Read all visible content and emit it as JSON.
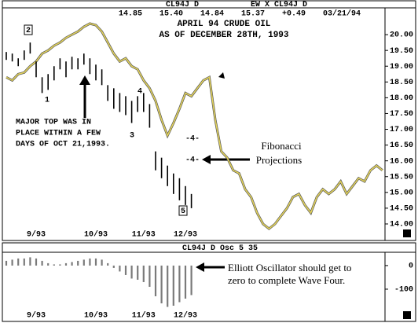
{
  "chart_data": [
    {
      "type": "ohlc",
      "header": [
        "CL94J D",
        "EW X CL94J D"
      ],
      "quote": "14.85 15.40 14.84 15.37 +0.49 03/21/94",
      "title": "APRIL 94 CRUDE OIL",
      "subtitle": "AS OF DECEMBER 28TH, 1993",
      "categories": [
        null,
        null,
        null,
        null,
        null,
        "9/93",
        null,
        null,
        null,
        null,
        null,
        null,
        null,
        null,
        null,
        "10/93",
        null,
        null,
        null,
        null,
        null,
        null,
        null,
        "11/93",
        null,
        null,
        null,
        null,
        null,
        null,
        "12/93",
        null,
        null,
        null,
        null,
        null,
        null,
        null,
        null,
        null,
        null,
        null,
        null,
        null,
        null,
        null,
        null,
        null,
        null,
        null,
        null,
        null,
        null,
        null,
        null,
        null,
        null,
        null,
        null,
        null,
        null,
        null,
        null,
        null
      ],
      "high": [
        19.45,
        19.4,
        19.25,
        19.5,
        19.75,
        19.15,
        18.65,
        18.75,
        19.0,
        19.25,
        19.15,
        19.3,
        19.25,
        19.4,
        19.25,
        19.05,
        18.9,
        18.4,
        18.3,
        18.15,
        18.05,
        17.9,
        18.05,
        18.15,
        17.8,
        16.3,
        16.1,
        15.85,
        15.6,
        15.45,
        15.2,
        14.95,
        null,
        null,
        null,
        null,
        null,
        null,
        null,
        null,
        null,
        null,
        null,
        null,
        null,
        null,
        null,
        null,
        null,
        null,
        null,
        null,
        null,
        null,
        null,
        null,
        null,
        null,
        null,
        null,
        null,
        null,
        null,
        null
      ],
      "low": [
        19.2,
        19.15,
        19.0,
        19.2,
        19.4,
        18.65,
        18.15,
        18.25,
        18.55,
        18.9,
        18.65,
        18.9,
        18.9,
        19.05,
        18.75,
        18.55,
        18.4,
        17.9,
        17.65,
        17.55,
        17.45,
        17.2,
        17.55,
        17.55,
        17.05,
        15.7,
        15.45,
        15.2,
        14.95,
        14.75,
        14.6,
        14.5,
        null,
        null,
        null,
        null,
        null,
        null,
        null,
        null,
        null,
        null,
        null,
        null,
        null,
        null,
        null,
        null,
        null,
        null,
        null,
        null,
        null,
        null,
        null,
        null,
        null,
        null,
        null,
        null,
        null,
        null,
        null,
        null
      ],
      "bar_color": "#000000",
      "line": {
        "color": "#e2d25a",
        "values": [
          18.65,
          18.55,
          18.75,
          18.8,
          19.0,
          19.15,
          19.4,
          19.5,
          19.65,
          19.75,
          19.9,
          20.0,
          20.1,
          20.25,
          20.35,
          20.3,
          20.1,
          19.75,
          19.4,
          19.15,
          19.25,
          19.0,
          18.9,
          18.55,
          18.3,
          17.9,
          17.3,
          16.8,
          17.2,
          17.65,
          18.15,
          18.05,
          18.3,
          18.55,
          18.65,
          17.3,
          16.3,
          16.1,
          15.7,
          15.6,
          15.1,
          14.85,
          14.35,
          14.0,
          13.85,
          14.0,
          14.25,
          14.5,
          14.85,
          14.95,
          14.6,
          14.35,
          14.85,
          15.1,
          14.95,
          15.1,
          15.35,
          14.95,
          15.2,
          15.45,
          15.35,
          15.7,
          15.85,
          15.7
        ]
      },
      "ylim": [
        13.8,
        20.55
      ],
      "yticks": [
        {
          "value": 20,
          "label": "20.00"
        },
        {
          "value": 19.5,
          "label": "19.50"
        },
        {
          "value": 19,
          "label": "19.00"
        },
        {
          "value": 18.5,
          "label": "18.50"
        },
        {
          "value": 18,
          "label": "18.00"
        },
        {
          "value": 17.5,
          "label": "17.50"
        },
        {
          "value": 17,
          "label": "17.00"
        },
        {
          "value": 16.5,
          "label": "16.50"
        },
        {
          "value": 16,
          "label": "16.00"
        },
        {
          "value": 15.5,
          "label": "15.50"
        },
        {
          "value": 15,
          "label": "15.00"
        },
        {
          "value": 14.5,
          "label": "14.50"
        },
        {
          "value": 14,
          "label": "14.00"
        }
      ],
      "annotation": [
        "MAJOR TOP WAS IN",
        "PLACE WITHIN A FEW",
        "DAYS OF OCT 21,1993."
      ],
      "projection_note": [
        "Fibonacci",
        "Projections"
      ],
      "wave_labels": [
        "2",
        "1",
        "3",
        "4",
        "5",
        "-4-",
        "-4-"
      ]
    },
    {
      "type": "bar",
      "header": "CL94J D Osc 5 35",
      "values": [
        20,
        25,
        30,
        30,
        35,
        30,
        20,
        10,
        5,
        5,
        10,
        15,
        20,
        25,
        30,
        30,
        25,
        10,
        -10,
        -25,
        -40,
        -55,
        -60,
        -70,
        -90,
        -130,
        -160,
        -175,
        -170,
        -155,
        -140,
        -125,
        null,
        null,
        null,
        null,
        null,
        null,
        null,
        null,
        null,
        null,
        null,
        null,
        null,
        null,
        null,
        null,
        null,
        null,
        null,
        null,
        null,
        null,
        null,
        null,
        null,
        null,
        null,
        null,
        null,
        null,
        null,
        null
      ],
      "color": "#7a7a7a",
      "ylim": [
        -180,
        53
      ],
      "yticks": [
        0,
        -100
      ],
      "annotation": [
        "Elliott Oscillator should get to",
        "zero to complete Wave Four."
      ]
    }
  ]
}
